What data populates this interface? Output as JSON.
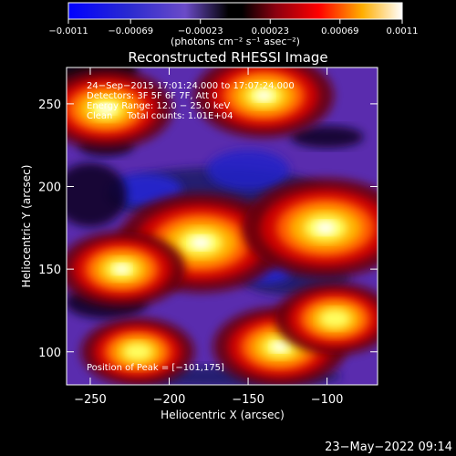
{
  "chart_data": {
    "type": "heatmap",
    "title": "Reconstructed RHESSI Image",
    "xlabel": "Heliocentric X (arcsec)",
    "ylabel": "Heliocentric Y (arcsec)",
    "xlim": [
      -265,
      -68
    ],
    "ylim": [
      80,
      272
    ],
    "xticks": [
      -250,
      -200,
      -150,
      -100
    ],
    "yticks": [
      100,
      150,
      200,
      250
    ],
    "xtick_labels": [
      "−250",
      "−200",
      "−150",
      "−100"
    ],
    "ytick_labels": [
      "100",
      "150",
      "200",
      "250"
    ],
    "colorbar": {
      "min": -0.0011,
      "max": 0.0011,
      "ticks": [
        -0.0011,
        -0.00069,
        -0.00023,
        0.00023,
        0.00069,
        0.0011
      ],
      "tick_labels": [
        "−0.0011",
        "−0.00069",
        "−0.00023",
        "0.00023",
        "0.00069",
        "0.0011"
      ],
      "unit_label": "(photons cm⁻² s⁻¹ asec⁻²)"
    },
    "annotations": [
      "24−Sep−2015 17:01:24.000 to 17:07:24.000",
      "Detectors: 3F 5F 6F 7F, Att 0",
      "Energy Range: 12.0 − 25.0 keV",
      "Clean     Total counts: 1.01E+04"
    ],
    "peak_label": "Position of Peak = [−101,175]",
    "peak": [
      -101,
      175
    ],
    "bright_regions": [
      {
        "x": -180,
        "y": 166,
        "level": 1.0
      },
      {
        "x": -101,
        "y": 175,
        "level": 1.0
      },
      {
        "x": -240,
        "y": 247,
        "level": 0.75
      },
      {
        "x": -140,
        "y": 255,
        "level": 0.8
      },
      {
        "x": -230,
        "y": 150,
        "level": 0.7
      },
      {
        "x": -220,
        "y": 100,
        "level": 0.6
      },
      {
        "x": -130,
        "y": 103,
        "level": 0.75
      },
      {
        "x": -95,
        "y": 120,
        "level": 0.65
      }
    ]
  },
  "footer": {
    "date_stamp": "23−May−2022 09:14"
  }
}
